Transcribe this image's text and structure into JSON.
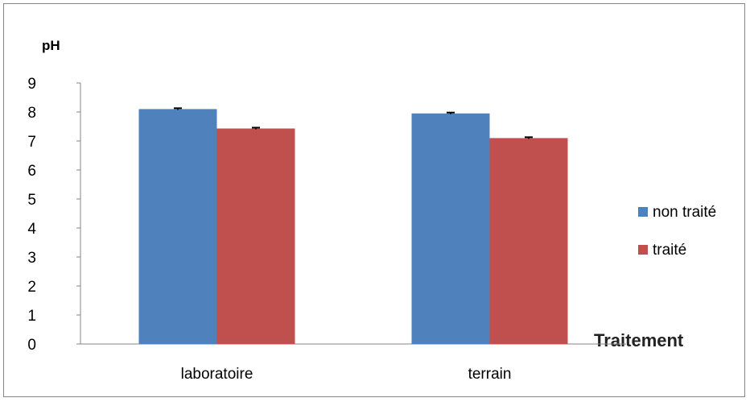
{
  "chart_data": {
    "type": "bar",
    "title": "",
    "ylabel": "pH",
    "xlabel": "Traitement",
    "categories": [
      "laboratoire",
      "terrain"
    ],
    "series": [
      {
        "name": "non traité",
        "color": "#4F81BD",
        "values": [
          8.1,
          7.95
        ],
        "errors": [
          0.03,
          0.03
        ]
      },
      {
        "name": "traité",
        "color": "#C0504D",
        "values": [
          7.43,
          7.1
        ],
        "errors": [
          0.03,
          0.03
        ]
      }
    ],
    "ylim": [
      0,
      9
    ],
    "yticks": [
      "0",
      "1",
      "2",
      "3",
      "4",
      "5",
      "6",
      "7",
      "8",
      "9"
    ],
    "grid": false,
    "legend": "right"
  }
}
